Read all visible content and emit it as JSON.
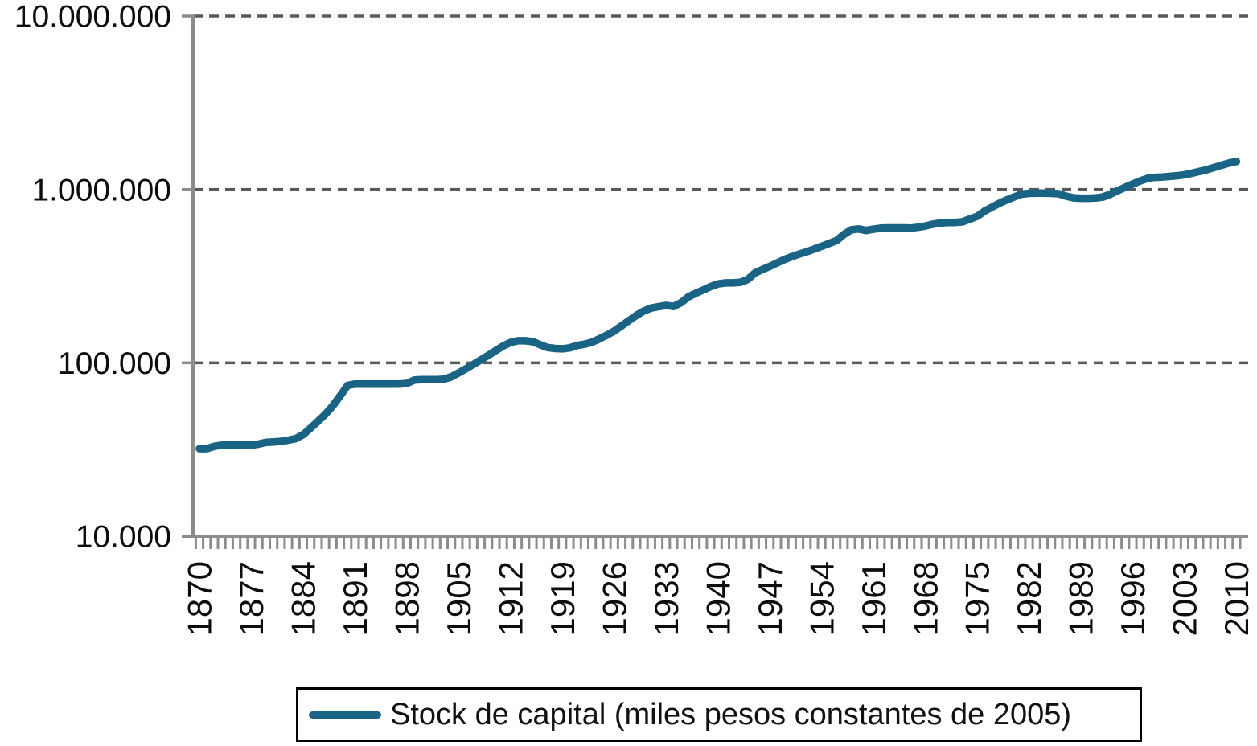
{
  "chart_data": {
    "type": "line",
    "title": "",
    "xlabel": "",
    "ylabel": "",
    "y_scale": "log10",
    "grid": "horizontal-dashed",
    "legend_position": "bottom",
    "x_range": [
      1870,
      2010
    ],
    "y_ticks": [
      {
        "label": "10.000.000",
        "value": 10000000
      },
      {
        "label": "1.000.000",
        "value": 1000000
      },
      {
        "label": "100.000",
        "value": 100000
      },
      {
        "label": "10.000",
        "value": 10000
      }
    ],
    "x_tick_labels": [
      "1870",
      "1877",
      "1884",
      "1891",
      "1898",
      "1905",
      "1912",
      "1919",
      "1926",
      "1933",
      "1940",
      "1947",
      "1954",
      "1961",
      "1968",
      "1975",
      "1982",
      "1989",
      "1996",
      "2003",
      "2010"
    ],
    "x_tick_step_years": 7,
    "years": [
      1870,
      1871,
      1872,
      1873,
      1874,
      1875,
      1876,
      1877,
      1878,
      1879,
      1880,
      1881,
      1882,
      1883,
      1884,
      1885,
      1886,
      1887,
      1888,
      1889,
      1890,
      1891,
      1892,
      1893,
      1894,
      1895,
      1896,
      1897,
      1898,
      1899,
      1900,
      1901,
      1902,
      1903,
      1904,
      1905,
      1906,
      1907,
      1908,
      1909,
      1910,
      1911,
      1912,
      1913,
      1914,
      1915,
      1916,
      1917,
      1918,
      1919,
      1920,
      1921,
      1922,
      1923,
      1924,
      1925,
      1926,
      1927,
      1928,
      1929,
      1930,
      1931,
      1932,
      1933,
      1934,
      1935,
      1936,
      1937,
      1938,
      1939,
      1940,
      1941,
      1942,
      1943,
      1944,
      1945,
      1946,
      1947,
      1948,
      1949,
      1950,
      1951,
      1952,
      1953,
      1954,
      1955,
      1956,
      1957,
      1958,
      1959,
      1960,
      1961,
      1962,
      1963,
      1964,
      1965,
      1966,
      1967,
      1968,
      1969,
      1970,
      1971,
      1972,
      1973,
      1974,
      1975,
      1976,
      1977,
      1978,
      1979,
      1980,
      1981,
      1982,
      1983,
      1984,
      1985,
      1986,
      1987,
      1988,
      1989,
      1990,
      1991,
      1992,
      1993,
      1994,
      1995,
      1996,
      1997,
      1998,
      1999,
      2000,
      2001,
      2002,
      2003,
      2004,
      2005,
      2006,
      2007,
      2008,
      2009,
      2010
    ],
    "series": [
      {
        "name": "Stock de capital (miles pesos constantes de 2005)",
        "values": [
          32000,
          32000,
          33000,
          33500,
          33500,
          33500,
          33500,
          33500,
          34000,
          34800,
          35000,
          35200,
          35800,
          36500,
          38500,
          42000,
          46000,
          50500,
          56500,
          64500,
          74000,
          75500,
          75500,
          75500,
          75500,
          75500,
          75500,
          75500,
          76000,
          79500,
          80000,
          80000,
          80000,
          80500,
          83000,
          87500,
          92500,
          98000,
          104000,
          110500,
          117500,
          125000,
          131000,
          134000,
          134000,
          132500,
          127000,
          122500,
          121000,
          120500,
          122000,
          126000,
          128000,
          131500,
          137500,
          144500,
          152500,
          163500,
          175500,
          188000,
          199000,
          207000,
          211000,
          214500,
          211500,
          222000,
          240000,
          252000,
          263000,
          275000,
          285000,
          289000,
          289000,
          291000,
          302000,
          330000,
          345000,
          360000,
          377000,
          395000,
          410000,
          424000,
          437000,
          453000,
          470000,
          488000,
          507000,
          550000,
          585000,
          592000,
          580000,
          590000,
          598000,
          600000,
          600000,
          600000,
          598000,
          605000,
          615000,
          630000,
          640000,
          645000,
          645000,
          650000,
          675000,
          700000,
          750000,
          790000,
          833000,
          870000,
          905000,
          940000,
          950000,
          952000,
          952000,
          950000,
          945000,
          915000,
          895000,
          890000,
          890000,
          893000,
          905000,
          940000,
          985000,
          1030000,
          1075000,
          1120000,
          1160000,
          1175000,
          1180000,
          1190000,
          1200000,
          1215000,
          1240000,
          1270000,
          1300000,
          1340000,
          1380000,
          1420000,
          1450000
        ]
      }
    ]
  },
  "legend": {
    "label": "Stock de capital (miles pesos constantes de 2005)"
  },
  "colors": {
    "line": "#196484",
    "grid": "#5a5a5a",
    "axis": "#8c8c8c",
    "text": "#0d0d0d",
    "legend_border": "#000000",
    "background": "#ffffff"
  }
}
